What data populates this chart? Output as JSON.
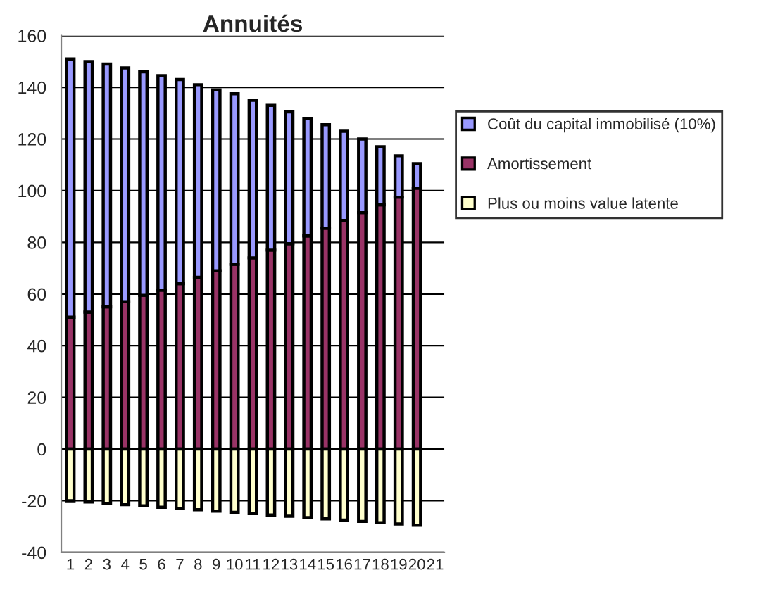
{
  "chart_data": {
    "type": "bar",
    "title": "Annuités",
    "stacked": true,
    "categories": [
      "1",
      "2",
      "3",
      "4",
      "5",
      "6",
      "7",
      "8",
      "9",
      "10",
      "11",
      "12",
      "13",
      "14",
      "15",
      "16",
      "17",
      "18",
      "19",
      "20",
      "21"
    ],
    "series": [
      {
        "name": "Amortissement",
        "color": "#993366",
        "values": [
          51,
          53,
          55,
          57,
          59.5,
          61.5,
          64,
          66.5,
          69,
          71.5,
          74,
          77,
          79.5,
          82.5,
          85.5,
          88.5,
          91.5,
          94.5,
          97.5,
          101,
          null
        ]
      },
      {
        "name": "Coût du capital immobilisé (10%)",
        "color": "#9999ff",
        "values": [
          100,
          97,
          94,
          90.5,
          86.5,
          83,
          79,
          74.5,
          70,
          66,
          61,
          56,
          51,
          45.5,
          40,
          34.5,
          28.5,
          22.5,
          16,
          9.5,
          null
        ]
      },
      {
        "name": "Plus ou moins value latente",
        "color": "#ffffcc",
        "values": [
          -20,
          -20.5,
          -21,
          -21.5,
          -22,
          -22.5,
          -23,
          -23.5,
          -24,
          -24.5,
          -25,
          -25.5,
          -26,
          -26.5,
          -27,
          -27.5,
          -28,
          -28.5,
          -29,
          -29.5,
          null
        ]
      }
    ],
    "ylim": [
      -40,
      160
    ],
    "yticks": [
      -40,
      -20,
      0,
      20,
      40,
      60,
      80,
      100,
      120,
      140,
      160
    ],
    "grid": "y",
    "legend": "right"
  }
}
